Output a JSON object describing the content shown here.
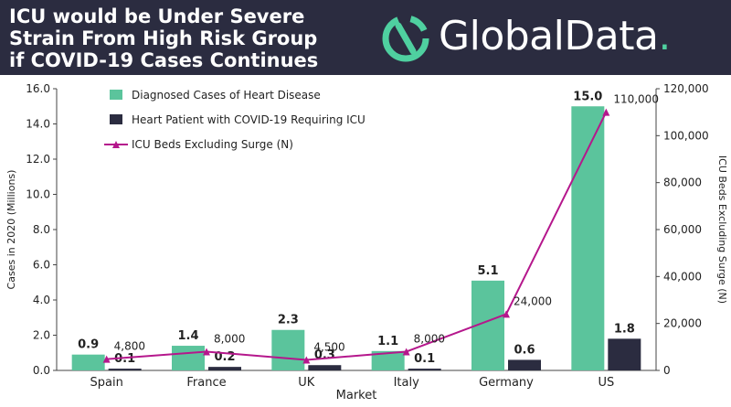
{
  "header": {
    "title_lines": [
      "ICU would be Under Severe",
      "Strain From High Risk Group",
      "if COVID-19 Cases Continues"
    ],
    "logo_text": "GlobalData",
    "logo_dot": ".",
    "logo_icon": "globaldata-ring-icon"
  },
  "colors": {
    "header_bg": "#2b2c40",
    "diagnosed": "#5bc49c",
    "icu_patients": "#2b2c40",
    "icu_beds": "#b5178c",
    "logo_accent": "#4fd0a0"
  },
  "chart_data": {
    "type": "bar",
    "categories": [
      "Spain",
      "France",
      "UK",
      "Italy",
      "Germany",
      "US"
    ],
    "series": [
      {
        "name": "Diagnosed Cases of Heart Disease",
        "axis": "left",
        "values": [
          0.9,
          1.4,
          2.3,
          1.1,
          5.1,
          15.0
        ],
        "labels": [
          "0.9",
          "1.4",
          "2.3",
          "1.1",
          "5.1",
          "15.0"
        ]
      },
      {
        "name": "Heart Patient with COVID-19 Requiring ICU",
        "axis": "left",
        "values": [
          0.1,
          0.2,
          0.3,
          0.1,
          0.6,
          1.8
        ],
        "labels": [
          "0.1",
          "0.2",
          "0.3",
          "0.1",
          "0.6",
          "1.8"
        ]
      },
      {
        "name": "ICU Beds Excluding Surge (N)",
        "type": "line",
        "axis": "right",
        "values": [
          4800,
          8000,
          4500,
          8000,
          24000,
          110000
        ],
        "labels": [
          "4,800",
          "8,000",
          "4,500",
          "8,000",
          "24,000",
          "110,000"
        ]
      }
    ],
    "xlabel": "Market",
    "ylabel": "Cases in 2020 (Millions)",
    "y2label": "ICU Beds Excluding Surge (N)",
    "ylim": [
      0,
      16
    ],
    "y2lim": [
      0,
      120000
    ],
    "yticks": [
      "0.0",
      "2.0",
      "4.0",
      "6.0",
      "8.0",
      "10.0",
      "12.0",
      "14.0",
      "16.0"
    ],
    "y2ticks": [
      "0",
      "20,000",
      "40,000",
      "60,000",
      "80,000",
      "100,000",
      "120,000"
    ],
    "legend": "top-left inside plot",
    "grid": false
  }
}
